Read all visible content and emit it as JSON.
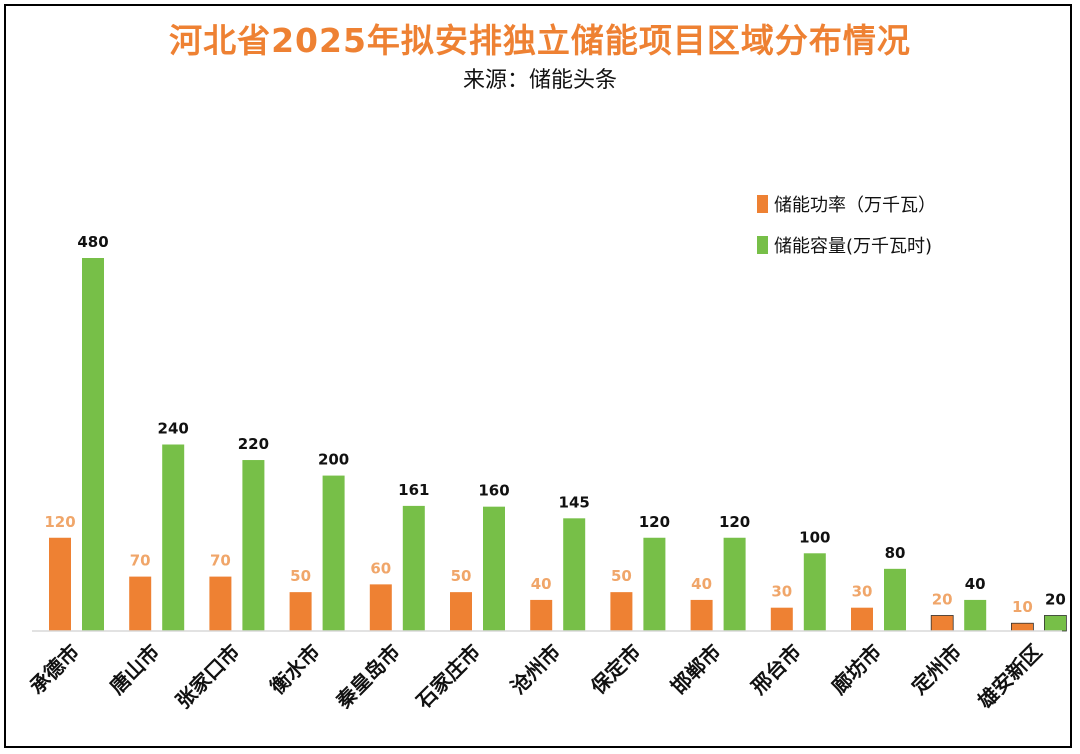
{
  "chart_data": {
    "type": "bar",
    "title": "河北省2025年拟安排独立储能项目区域分布情况",
    "subtitle": "来源：储能头条",
    "categories": [
      "承德市",
      "唐山市",
      "张家口市",
      "衡水市",
      "秦皇岛市",
      "石家庄市",
      "沧州市",
      "保定市",
      "邯郸市",
      "邢台市",
      "廊坊市",
      "定州市",
      "雄安新区"
    ],
    "series": [
      {
        "name": "储能功率（万千瓦）",
        "color": "#EE8133",
        "label_color": "#F0A66A",
        "values": [
          120,
          70,
          70,
          50,
          60,
          50,
          40,
          50,
          40,
          30,
          30,
          20,
          10
        ]
      },
      {
        "name": "储能容量(万千瓦时)",
        "color": "#77BF48",
        "label_color": "#111111",
        "values": [
          480,
          240,
          220,
          200,
          161,
          160,
          145,
          120,
          120,
          100,
          80,
          40,
          20
        ]
      }
    ],
    "ylim": [
      0,
      480
    ],
    "legend": "top-right",
    "grid": false
  }
}
